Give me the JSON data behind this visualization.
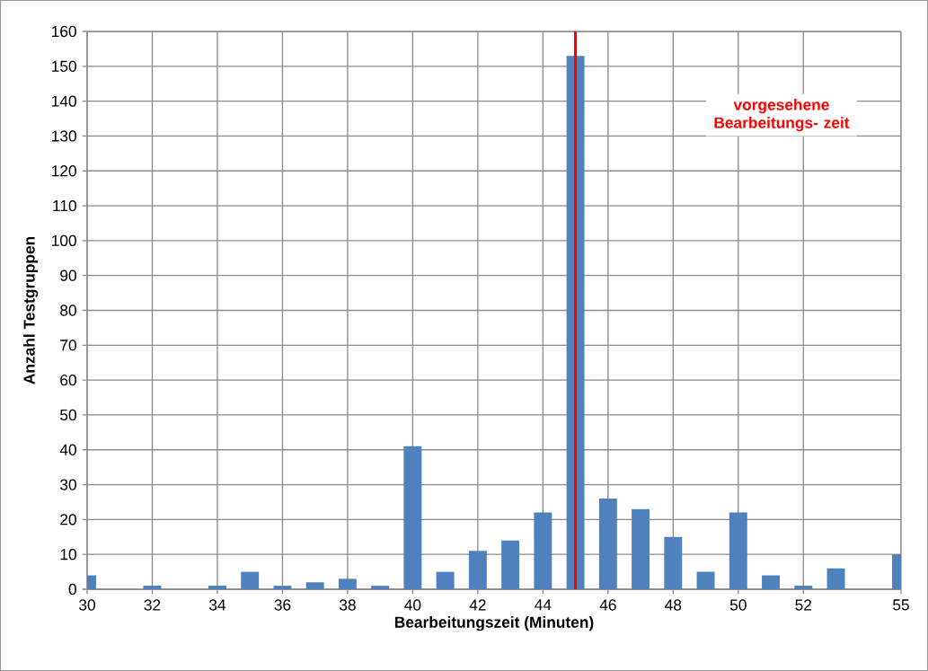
{
  "chart_data": {
    "type": "bar",
    "xlabel": "Bearbeitungszeit (Minuten)",
    "ylabel": "Anzahl Testgruppen",
    "x": [
      30,
      31,
      32,
      33,
      34,
      35,
      36,
      37,
      38,
      39,
      40,
      41,
      42,
      43,
      44,
      45,
      46,
      47,
      48,
      49,
      50,
      51,
      52,
      53,
      55
    ],
    "values": [
      4,
      0,
      1,
      0,
      1,
      5,
      1,
      2,
      3,
      1,
      41,
      5,
      11,
      14,
      22,
      153,
      26,
      23,
      15,
      5,
      22,
      4,
      1,
      6,
      10
    ],
    "color": "#4f81bd",
    "xlim": [
      30,
      55
    ],
    "xticks": [
      30,
      32,
      34,
      36,
      38,
      40,
      42,
      44,
      46,
      48,
      50,
      52,
      55
    ],
    "ylim": [
      0,
      160
    ],
    "yticks": [
      0,
      10,
      20,
      30,
      40,
      50,
      60,
      70,
      80,
      90,
      100,
      110,
      120,
      130,
      140,
      150,
      160
    ],
    "grid": true,
    "ref_lines": [
      {
        "axis": "x",
        "value": 45,
        "label": "vorgesehene Bearbeitungs- zeit",
        "color": "#ff0000"
      }
    ]
  }
}
